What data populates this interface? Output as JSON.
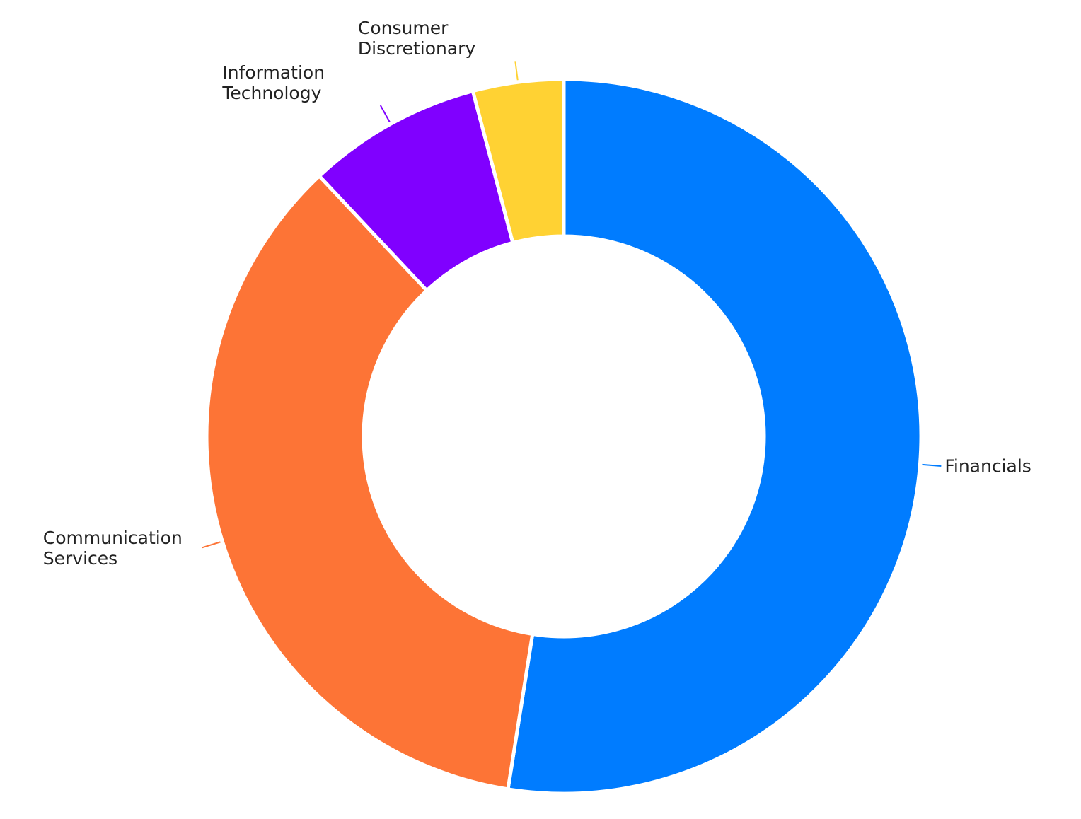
{
  "chart_data": {
    "type": "donut",
    "categories": [
      "Financials",
      "Communication Services",
      "Information Technology",
      "Consumer Discretionary"
    ],
    "values": [
      52.5,
      35.5,
      7.9,
      4.1
    ],
    "colors": [
      "#007cff",
      "#fd7436",
      "#8000ff",
      "#ffd233"
    ]
  }
}
